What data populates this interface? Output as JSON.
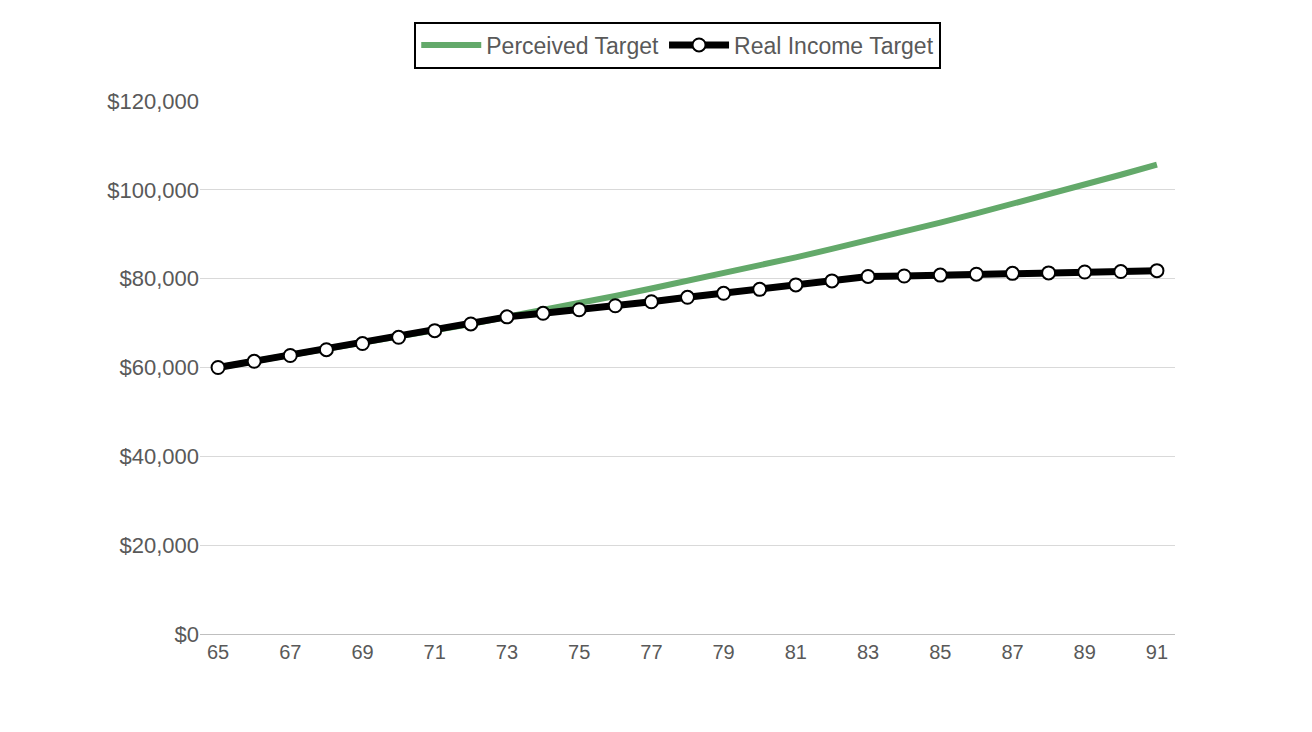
{
  "chart_data": {
    "type": "line",
    "x": [
      65,
      66,
      67,
      68,
      69,
      70,
      71,
      72,
      73,
      74,
      75,
      76,
      77,
      78,
      79,
      80,
      81,
      82,
      83,
      84,
      85,
      86,
      87,
      88,
      89,
      90,
      91
    ],
    "series": [
      {
        "name": "Perceived Target",
        "color": "#63a96a",
        "marker": "none",
        "line_style": "solid",
        "values": [
          60000,
          61400,
          62700,
          64000,
          65400,
          66800,
          68300,
          69800,
          71400,
          72900,
          74500,
          76100,
          77800,
          79500,
          81200,
          83000,
          84800,
          86700,
          88600,
          90600,
          92600,
          94700,
          96800,
          99000,
          101200,
          103400,
          105700
        ]
      },
      {
        "name": "Real Income Target",
        "color": "#000000",
        "marker": "circle",
        "line_style": "solid",
        "values": [
          60000,
          61400,
          62700,
          64000,
          65400,
          66800,
          68300,
          69800,
          71400,
          72200,
          73000,
          73900,
          74800,
          75800,
          76700,
          77600,
          78600,
          79500,
          80500,
          80600,
          80800,
          81000,
          81200,
          81300,
          81500,
          81600,
          81800
        ]
      }
    ],
    "xlim": [
      64.5,
      91.5
    ],
    "xticks": [
      65,
      67,
      69,
      71,
      73,
      75,
      77,
      79,
      81,
      83,
      85,
      87,
      89,
      91
    ],
    "ylim": [
      0,
      120000
    ],
    "yticks": [
      {
        "value": 0,
        "label": "$0"
      },
      {
        "value": 20000,
        "label": "$20,000"
      },
      {
        "value": 40000,
        "label": "$40,000"
      },
      {
        "value": 60000,
        "label": "$60,000"
      },
      {
        "value": 80000,
        "label": "$80,000"
      },
      {
        "value": 100000,
        "label": "$100,000"
      },
      {
        "value": 120000,
        "label": "$120,000"
      }
    ],
    "grid": true,
    "legend": "top"
  }
}
